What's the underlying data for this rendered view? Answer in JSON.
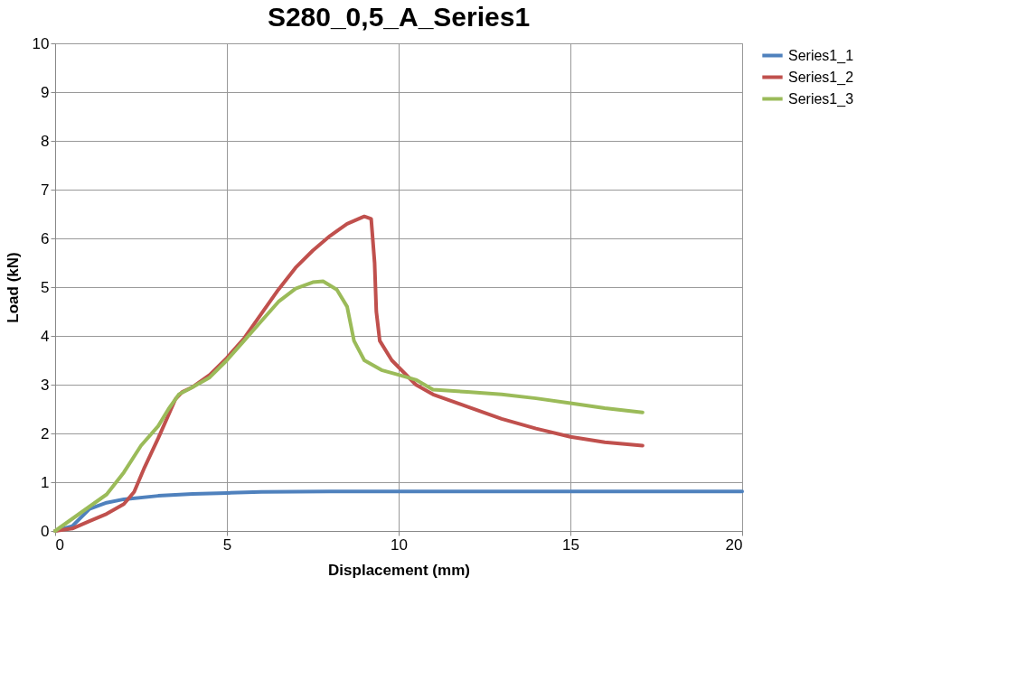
{
  "chart_data": {
    "type": "line",
    "title": "S280_0,5_A_Series1",
    "xlabel": "Displacement (mm)",
    "ylabel": "Load (kN)",
    "xlim": [
      0,
      20
    ],
    "xticks": [
      0,
      5,
      10,
      15,
      20
    ],
    "ylim": [
      0,
      10
    ],
    "yticks": [
      0,
      1,
      2,
      3,
      4,
      5,
      6,
      7,
      8,
      9,
      10
    ],
    "grid": true,
    "legend": "right",
    "marker": "none",
    "line_style": "solid",
    "series": [
      {
        "name": "Series1_1",
        "color": "#4f81bd",
        "x": [
          0,
          0.5,
          1,
          1.5,
          2,
          3,
          4,
          5,
          6,
          8,
          10,
          20
        ],
        "values": [
          0,
          0.1,
          0.45,
          0.58,
          0.65,
          0.72,
          0.76,
          0.78,
          0.8,
          0.81,
          0.81,
          0.81
        ]
      },
      {
        "name": "Series1_2",
        "color": "#c0504d",
        "x": [
          0,
          0.5,
          1,
          1.5,
          2,
          2.3,
          2.6,
          3,
          3.5,
          3.7,
          4,
          4.5,
          5,
          5.5,
          6,
          6.5,
          7,
          7.5,
          8,
          8.5,
          9,
          9.2,
          9.3,
          9.35,
          9.45,
          9.8,
          10.5,
          11,
          12,
          13,
          14,
          15,
          16,
          17.1
        ],
        "values": [
          0,
          0.05,
          0.2,
          0.35,
          0.55,
          0.8,
          1.3,
          1.9,
          2.7,
          2.85,
          2.95,
          3.2,
          3.55,
          3.95,
          4.45,
          4.95,
          5.4,
          5.75,
          6.05,
          6.3,
          6.45,
          6.4,
          5.5,
          4.5,
          3.9,
          3.5,
          3.0,
          2.8,
          2.55,
          2.3,
          2.1,
          1.93,
          1.82,
          1.75
        ]
      },
      {
        "name": "Series1_3",
        "color": "#9bbb59",
        "x": [
          0,
          0.5,
          1,
          1.5,
          2,
          2.5,
          3,
          3.3,
          3.6,
          4,
          4.5,
          5,
          5.5,
          6,
          6.5,
          7,
          7.5,
          7.8,
          8.2,
          8.5,
          8.7,
          9,
          9.5,
          10,
          10.5,
          11,
          12,
          13,
          14,
          15,
          16,
          17.1
        ],
        "values": [
          0,
          0.25,
          0.5,
          0.75,
          1.2,
          1.75,
          2.15,
          2.5,
          2.8,
          2.95,
          3.15,
          3.5,
          3.9,
          4.3,
          4.7,
          4.97,
          5.1,
          5.12,
          4.95,
          4.6,
          3.9,
          3.5,
          3.3,
          3.2,
          3.1,
          2.9,
          2.85,
          2.8,
          2.72,
          2.62,
          2.52,
          2.43
        ]
      }
    ]
  }
}
